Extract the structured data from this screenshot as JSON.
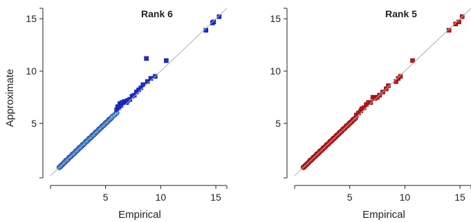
{
  "chart_data": [
    {
      "type": "scatter",
      "title": "Rank 6",
      "xlabel": "Empirical",
      "ylabel": "Approximate",
      "xlim": [
        0,
        16
      ],
      "ylim": [
        -0.2,
        16
      ],
      "xticks": [
        5,
        10,
        15
      ],
      "yticks": [
        5,
        10,
        15
      ],
      "reference_line": "y = x",
      "grid": false,
      "series": [
        {
          "marker": "circle",
          "color": "#4aa3f0",
          "edge": "#1a2a8a",
          "points": [
            [
              0.8,
              0.8
            ],
            [
              0.9,
              0.9
            ],
            [
              1.0,
              1.0
            ],
            [
              1.1,
              1.1
            ],
            [
              1.2,
              1.2
            ],
            [
              1.3,
              1.3
            ],
            [
              1.4,
              1.45
            ],
            [
              1.5,
              1.5
            ],
            [
              1.6,
              1.6
            ],
            [
              1.7,
              1.75
            ],
            [
              1.8,
              1.8
            ],
            [
              1.9,
              1.9
            ],
            [
              2.0,
              2.05
            ],
            [
              2.1,
              2.1
            ],
            [
              2.2,
              2.2
            ],
            [
              2.3,
              2.35
            ],
            [
              2.4,
              2.4
            ],
            [
              2.5,
              2.5
            ],
            [
              2.6,
              2.65
            ],
            [
              2.7,
              2.7
            ],
            [
              2.8,
              2.8
            ],
            [
              2.9,
              2.95
            ],
            [
              3.0,
              3.0
            ],
            [
              3.1,
              3.1
            ],
            [
              3.2,
              3.25
            ],
            [
              3.3,
              3.3
            ],
            [
              3.4,
              3.4
            ],
            [
              3.5,
              3.55
            ],
            [
              3.6,
              3.6
            ],
            [
              3.7,
              3.7
            ],
            [
              3.8,
              3.85
            ],
            [
              3.9,
              3.9
            ],
            [
              4.0,
              4.0
            ],
            [
              4.1,
              4.15
            ],
            [
              4.2,
              4.2
            ],
            [
              4.3,
              4.3
            ],
            [
              4.4,
              4.45
            ],
            [
              4.5,
              4.5
            ],
            [
              4.6,
              4.6
            ],
            [
              4.7,
              4.75
            ],
            [
              4.8,
              4.8
            ],
            [
              4.9,
              4.9
            ],
            [
              5.0,
              5.05
            ],
            [
              5.1,
              5.1
            ],
            [
              5.2,
              5.2
            ],
            [
              5.3,
              5.35
            ],
            [
              5.4,
              5.4
            ],
            [
              5.5,
              5.5
            ],
            [
              5.6,
              5.65
            ],
            [
              5.8,
              5.8
            ],
            [
              6.0,
              6.0
            ]
          ]
        },
        {
          "marker": "square",
          "color": "#1c2fd0",
          "edge": "#0a148a",
          "points": [
            [
              6.0,
              6.3
            ],
            [
              6.1,
              6.6
            ],
            [
              6.2,
              6.5
            ],
            [
              6.3,
              6.9
            ],
            [
              6.4,
              6.7
            ],
            [
              6.5,
              7.0
            ],
            [
              6.7,
              7.1
            ],
            [
              6.9,
              7.0
            ],
            [
              7.0,
              7.2
            ],
            [
              7.2,
              7.3
            ],
            [
              7.4,
              7.6
            ],
            [
              7.6,
              7.7
            ],
            [
              7.8,
              8.0
            ],
            [
              8.0,
              8.2
            ],
            [
              8.2,
              8.4
            ],
            [
              8.4,
              8.7
            ],
            [
              8.7,
              11.2
            ],
            [
              8.8,
              9.0
            ],
            [
              9.1,
              9.3
            ],
            [
              9.5,
              9.5
            ],
            [
              10.5,
              11.0
            ],
            [
              14.1,
              13.9
            ],
            [
              14.7,
              14.6
            ],
            [
              14.8,
              14.7
            ],
            [
              15.3,
              15.2
            ]
          ]
        }
      ]
    },
    {
      "type": "scatter",
      "title": "Rank 5",
      "xlabel": "Empirical",
      "ylabel": "",
      "xlim": [
        0,
        16
      ],
      "ylim": [
        -0.2,
        16
      ],
      "xticks": [
        5,
        10,
        15
      ],
      "yticks": [
        5,
        10,
        15
      ],
      "reference_line": "y = x",
      "grid": false,
      "series": [
        {
          "marker": "circle",
          "color": "#e02020",
          "edge": "#7a0a0a",
          "points": [
            [
              0.8,
              0.8
            ],
            [
              0.9,
              0.9
            ],
            [
              1.0,
              1.0
            ],
            [
              1.1,
              1.1
            ],
            [
              1.2,
              1.2
            ],
            [
              1.3,
              1.3
            ],
            [
              1.4,
              1.45
            ],
            [
              1.5,
              1.5
            ],
            [
              1.6,
              1.6
            ],
            [
              1.7,
              1.75
            ],
            [
              1.8,
              1.8
            ],
            [
              1.9,
              1.9
            ],
            [
              2.0,
              2.05
            ],
            [
              2.1,
              2.1
            ],
            [
              2.2,
              2.2
            ],
            [
              2.3,
              2.35
            ],
            [
              2.4,
              2.4
            ],
            [
              2.5,
              2.5
            ],
            [
              2.6,
              2.65
            ],
            [
              2.7,
              2.7
            ],
            [
              2.8,
              2.8
            ],
            [
              2.9,
              2.95
            ],
            [
              3.0,
              3.0
            ],
            [
              3.1,
              3.1
            ],
            [
              3.2,
              3.25
            ],
            [
              3.3,
              3.3
            ],
            [
              3.4,
              3.4
            ],
            [
              3.5,
              3.55
            ],
            [
              3.6,
              3.6
            ],
            [
              3.7,
              3.7
            ],
            [
              3.8,
              3.85
            ],
            [
              3.9,
              3.9
            ],
            [
              4.0,
              4.0
            ],
            [
              4.1,
              4.15
            ],
            [
              4.2,
              4.2
            ],
            [
              4.3,
              4.3
            ],
            [
              4.4,
              4.45
            ],
            [
              4.5,
              4.5
            ],
            [
              4.6,
              4.6
            ],
            [
              4.7,
              4.75
            ],
            [
              4.8,
              4.8
            ],
            [
              4.9,
              4.9
            ],
            [
              5.0,
              5.05
            ],
            [
              5.1,
              5.1
            ],
            [
              5.2,
              5.2
            ],
            [
              5.3,
              5.35
            ],
            [
              5.4,
              5.4
            ],
            [
              5.5,
              5.5
            ]
          ]
        },
        {
          "marker": "square",
          "color": "#c81414",
          "edge": "#6a0808",
          "points": [
            [
              5.6,
              5.8
            ],
            [
              5.8,
              6.0
            ],
            [
              6.0,
              6.2
            ],
            [
              6.1,
              6.4
            ],
            [
              6.3,
              6.5
            ],
            [
              6.5,
              6.8
            ],
            [
              6.7,
              7.0
            ],
            [
              6.9,
              7.0
            ],
            [
              7.1,
              7.5
            ],
            [
              7.3,
              7.4
            ],
            [
              7.5,
              7.5
            ],
            [
              7.7,
              7.7
            ],
            [
              8.0,
              8.0
            ],
            [
              8.3,
              8.3
            ],
            [
              8.5,
              8.6
            ],
            [
              9.2,
              9.0
            ],
            [
              9.4,
              9.3
            ],
            [
              9.6,
              9.5
            ],
            [
              10.7,
              11.0
            ],
            [
              14.0,
              13.9
            ],
            [
              14.6,
              14.5
            ],
            [
              14.9,
              14.7
            ],
            [
              15.2,
              15.2
            ]
          ]
        }
      ]
    }
  ]
}
